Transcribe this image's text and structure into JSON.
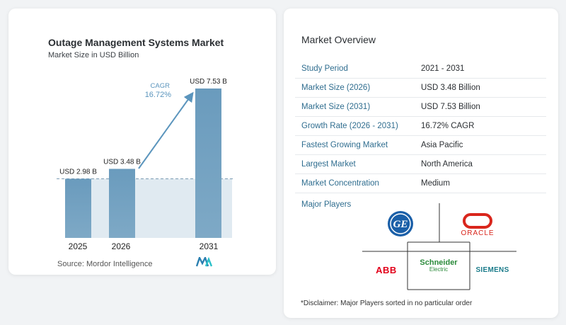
{
  "chart_data": {
    "type": "bar",
    "title": "Outage Management Systems Market",
    "subtitle": "Market Size in USD Billion",
    "categories": [
      "2025",
      "2026",
      "2031"
    ],
    "values": [
      2.98,
      3.48,
      7.53
    ],
    "data_labels": [
      "USD 2.98 B",
      "USD 3.48 B",
      "USD 7.53 B"
    ],
    "cagr_label": "CAGR",
    "cagr_value": "16.72%",
    "ylim": [
      0,
      8
    ],
    "colors": {
      "bar": "#6f9fbf",
      "bar_dark": "#4a82a8",
      "shade": "#dbe6ef",
      "arrow": "#5b95bd",
      "cagr_text": "#5b95bd"
    }
  },
  "source": "Source:  Mordor Intelligence",
  "overview": {
    "title": "Market Overview",
    "rows": [
      {
        "key": "Study Period",
        "value": "2021 - 2031"
      },
      {
        "key": "Market Size (2026)",
        "value": "USD 3.48 Billion"
      },
      {
        "key": "Market Size (2031)",
        "value": "USD 7.53 Billion"
      },
      {
        "key": "Growth Rate (2026 - 2031)",
        "value": "16.72% CAGR"
      },
      {
        "key": "Fastest Growing Market",
        "value": "Asia Pacific"
      },
      {
        "key": "Largest Market",
        "value": "North America"
      },
      {
        "key": "Market Concentration",
        "value": "Medium"
      }
    ],
    "players_title": "Major Players",
    "players": {
      "ge": "GE",
      "oracle": "ORACLE",
      "abb": "ABB",
      "schneider_1": "Schneider",
      "schneider_2": "Electric",
      "siemens": "SIEMENS"
    },
    "disclaimer": "*Disclaimer: Major Players sorted in no particular order"
  }
}
